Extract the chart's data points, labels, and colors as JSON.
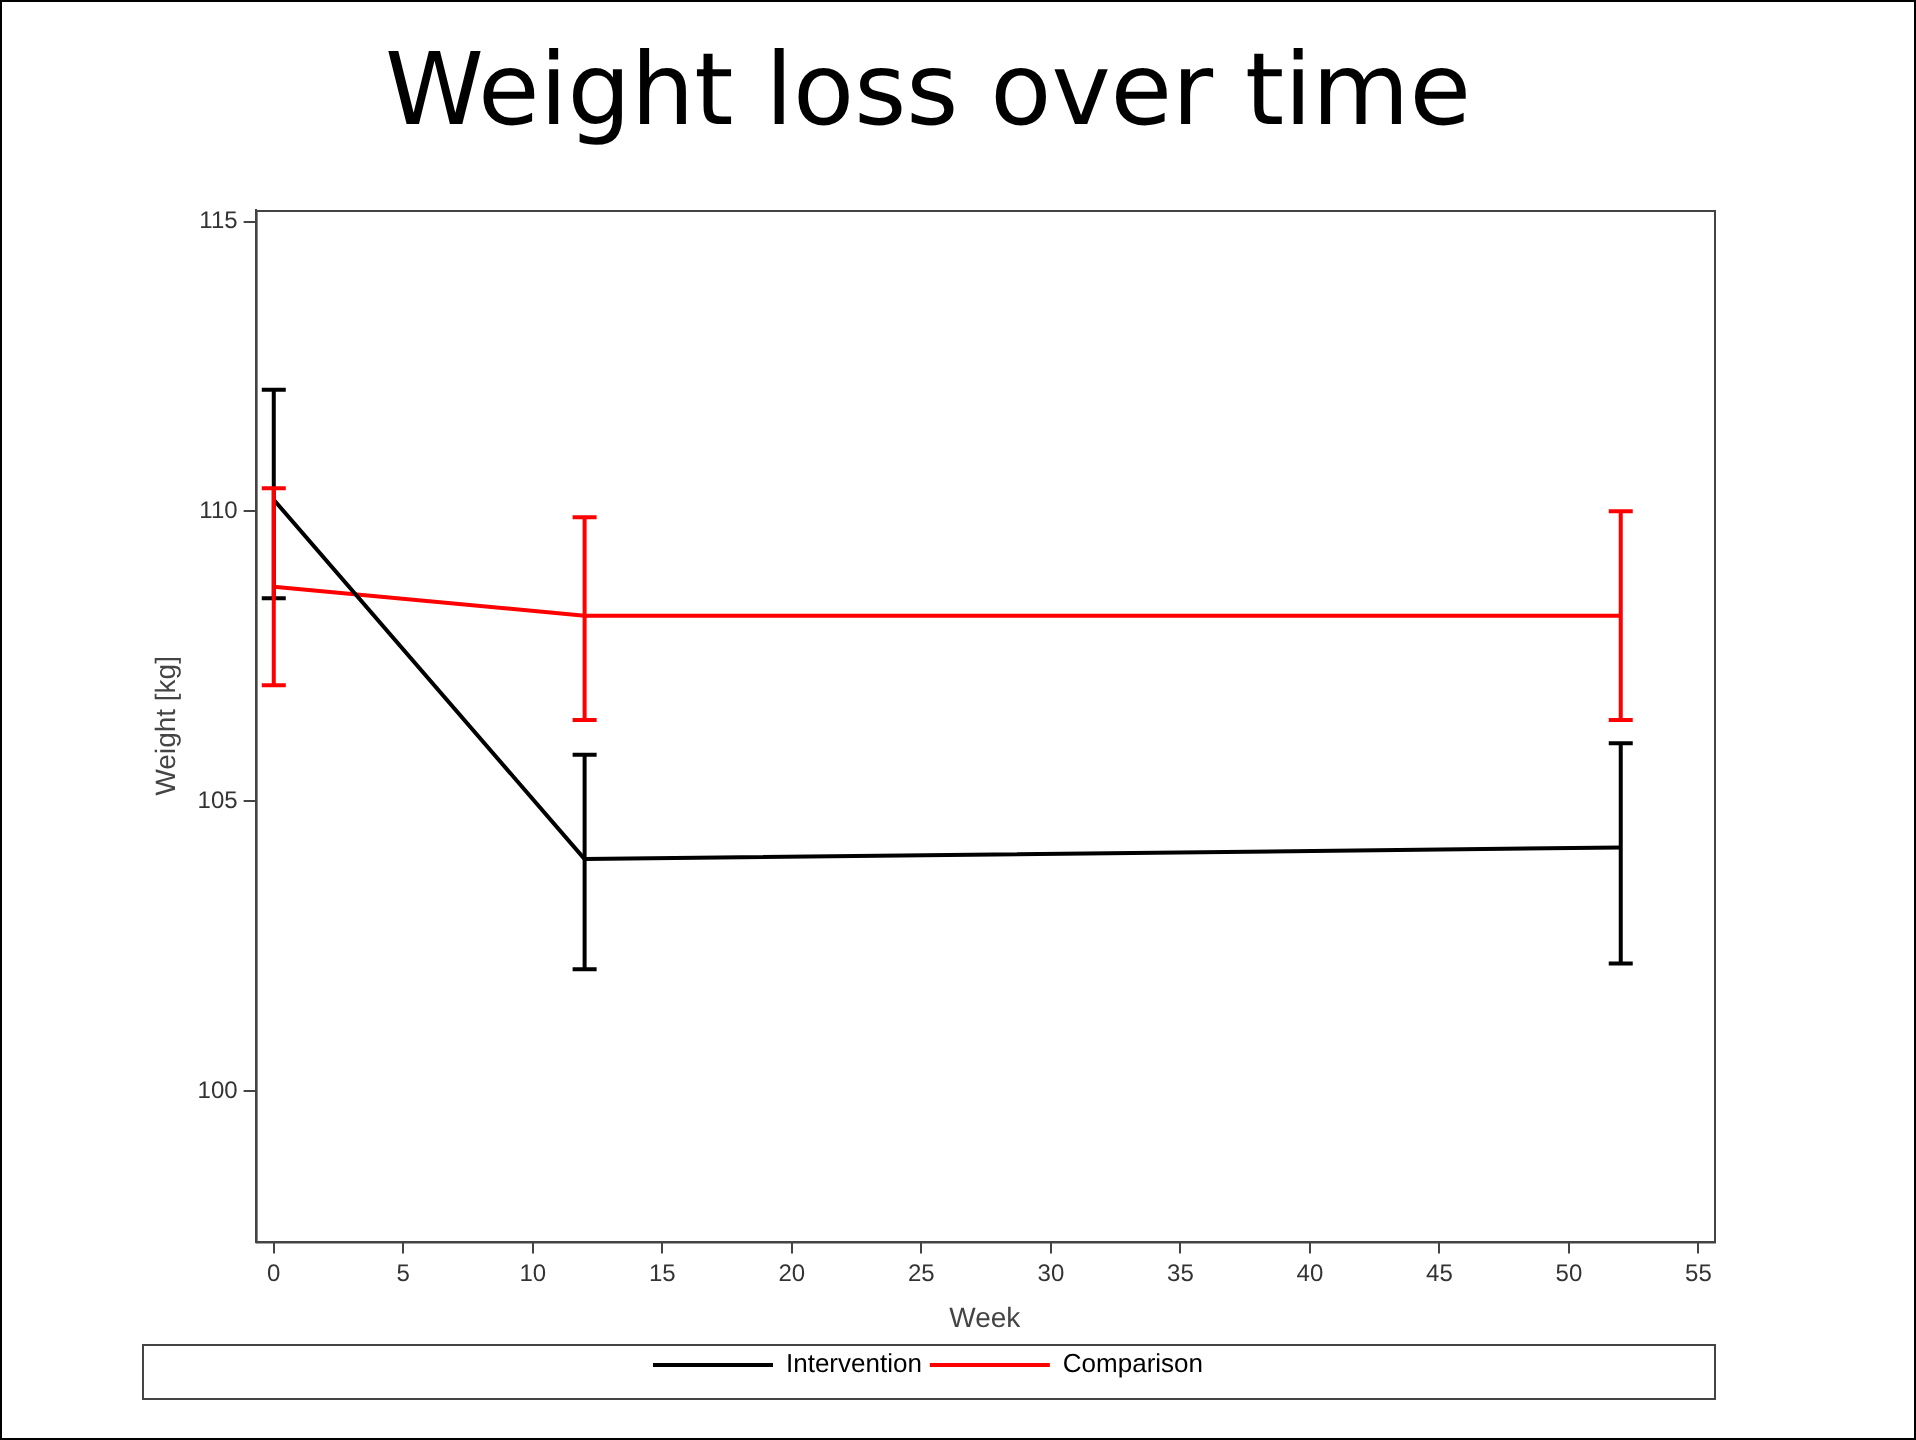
{
  "chart_data": {
    "type": "line",
    "title": "Weight loss over time",
    "xlabel": "Week",
    "ylabel": "Weight [kg]",
    "x": [
      0,
      12,
      52
    ],
    "series": [
      {
        "name": "Intervention",
        "color": "#000000",
        "values": [
          110.2,
          104.0,
          104.2
        ],
        "errors": [
          [
            108.5,
            112.1
          ],
          [
            102.1,
            105.8
          ],
          [
            102.2,
            106.0
          ]
        ]
      },
      {
        "name": "Comparison",
        "color": "#ff0000",
        "values": [
          108.7,
          108.2,
          108.2
        ],
        "errors": [
          [
            107.0,
            110.4
          ],
          [
            106.4,
            109.9
          ],
          [
            106.4,
            110.0
          ]
        ]
      }
    ],
    "xlim": [
      -0.7,
      55.6
    ],
    "xticks": [
      0,
      5,
      10,
      15,
      20,
      25,
      30,
      35,
      40,
      45,
      50,
      55
    ],
    "ylim": [
      97.4,
      115.2
    ],
    "yticks": [
      100,
      105,
      110,
      115
    ],
    "grid": false,
    "legend": "bottom",
    "marker": "none",
    "line_style": "solid"
  }
}
